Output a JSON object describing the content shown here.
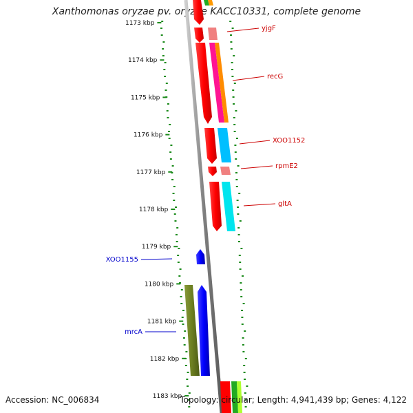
{
  "title": "Xanthomonas oryzae pv. oryzae KACC10331, complete genome",
  "footer": {
    "accession": "Accession: NC_006834",
    "summary": "Topology: circular; Length: 4,941,439 bp; Genes: 4,122"
  },
  "ticks": [
    {
      "label": "1173 kbp",
      "position_kbp": 1173
    },
    {
      "label": "1174 kbp",
      "position_kbp": 1174
    },
    {
      "label": "1175 kbp",
      "position_kbp": 1175
    },
    {
      "label": "1176 kbp",
      "position_kbp": 1176
    },
    {
      "label": "1177 kbp",
      "position_kbp": 1177
    },
    {
      "label": "1178 kbp",
      "position_kbp": 1178
    },
    {
      "label": "1179 kbp",
      "position_kbp": 1179
    },
    {
      "label": "1180 kbp",
      "position_kbp": 1180
    },
    {
      "label": "1181 kbp",
      "position_kbp": 1181
    },
    {
      "label": "1182 kbp",
      "position_kbp": 1182
    },
    {
      "label": "1183 kbp",
      "position_kbp": 1183
    }
  ],
  "genes": [
    {
      "name": "yjgF",
      "strand": "forward",
      "start_kbp": 1173.05,
      "end_kbp": 1173.25,
      "color": "#ff0000",
      "label_color": "#cc0000"
    },
    {
      "name": "recG",
      "strand": "forward",
      "start_kbp": 1173.55,
      "end_kbp": 1175.72,
      "color": "#ff0000",
      "label_color": "#cc0000"
    },
    {
      "name": "XOO1152",
      "strand": "forward",
      "start_kbp": 1175.82,
      "end_kbp": 1176.78,
      "color": "#ff0000",
      "label_color": "#cc0000"
    },
    {
      "name": "rpmE2",
      "strand": "forward",
      "start_kbp": 1176.85,
      "end_kbp": 1177.08,
      "color": "#ff0000",
      "label_color": "#cc0000"
    },
    {
      "name": "gltA",
      "strand": "forward",
      "start_kbp": 1177.28,
      "end_kbp": 1178.62,
      "color": "#ff0000",
      "label_color": "#cc0000"
    },
    {
      "name": "XOO1155",
      "strand": "reverse",
      "start_kbp": 1179.1,
      "end_kbp": 1179.5,
      "color": "#0000ff",
      "label_color": "#0000cc"
    },
    {
      "name": "mrcA",
      "strand": "reverse",
      "start_kbp": 1180.05,
      "end_kbp": 1182.5,
      "color": "#0000ff",
      "label_color": "#0000cc"
    }
  ],
  "colors": {
    "forward_cds": "#ff0000",
    "reverse_cds": "#0000ff",
    "backbone": "#888888",
    "gc_skew_ticks": "#1a8a1a",
    "cog_olive": "#6b8e23"
  }
}
